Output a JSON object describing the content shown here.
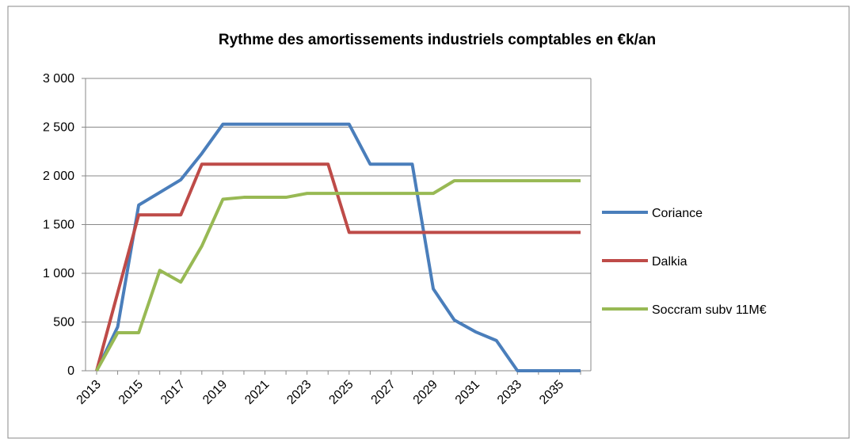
{
  "chart_data": {
    "type": "line",
    "title": "Rythme des amortissements industriels comptables en  €k/an",
    "categories": [
      "2013",
      null,
      "2015",
      null,
      "2017",
      null,
      "2019",
      null,
      "2021",
      null,
      "2023",
      null,
      "2025",
      null,
      "2027",
      null,
      "2029",
      null,
      "2031",
      null,
      "2033",
      null,
      "2035",
      null
    ],
    "series": [
      {
        "name": "Coriance",
        "color": "#4a7ebb",
        "values": [
          0,
          450,
          1700,
          1830,
          1960,
          2230,
          2530,
          2530,
          2530,
          2530,
          2530,
          2530,
          2530,
          2120,
          2120,
          2120,
          840,
          520,
          400,
          310,
          0,
          0,
          0,
          0
        ]
      },
      {
        "name": "Dalkia",
        "color": "#be4b48",
        "values": [
          0,
          800,
          1600,
          1600,
          1600,
          2120,
          2120,
          2120,
          2120,
          2120,
          2120,
          2120,
          1420,
          1420,
          1420,
          1420,
          1420,
          1420,
          1420,
          1420,
          1420,
          1420,
          1420,
          1420
        ]
      },
      {
        "name": "Soccram subv 11M€",
        "color": "#98b954",
        "values": [
          0,
          390,
          390,
          1030,
          910,
          1280,
          1760,
          1780,
          1780,
          1780,
          1820,
          1820,
          1820,
          1820,
          1820,
          1820,
          1820,
          1950,
          1950,
          1950,
          1950,
          1950,
          1950,
          1950
        ]
      }
    ],
    "ylim": [
      0,
      3000
    ],
    "yticks": [
      0,
      500,
      {
        "value": 1000,
        "label": "1 000"
      },
      {
        "value": 1500,
        "label": "1 500"
      },
      {
        "value": 2000,
        "label": "2 000"
      },
      {
        "value": 2500,
        "label": "2 500"
      },
      {
        "value": 3000,
        "label": "3 000"
      }
    ],
    "grid": true,
    "legend": "right"
  }
}
